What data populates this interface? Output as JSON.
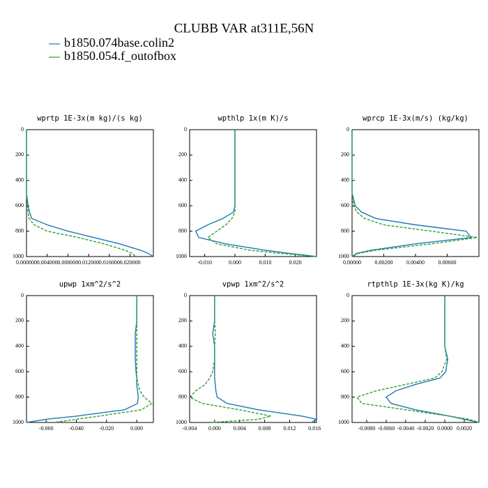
{
  "title": "CLUBB VAR at311E,56N",
  "legend": [
    {
      "name": "b1850.074base.colin2",
      "color": "#1f77b4"
    },
    {
      "name": "b1850.054.f_outofbox",
      "color": "#2ca02c"
    }
  ],
  "chart_data": [
    {
      "type": "line",
      "title": "wprtp  1E-3x(m kg)/(s kg)",
      "y": [
        0,
        100,
        200,
        300,
        400,
        500,
        600,
        650,
        700,
        750,
        800,
        850,
        900,
        950,
        975,
        1000
      ],
      "ylim": [
        0,
        1000
      ],
      "y_inverted": true,
      "yticks": [
        0,
        200,
        400,
        600,
        800,
        1000
      ],
      "xlim": [
        0,
        0.0245
      ],
      "xticks": [
        {
          "value": 0,
          "label": "0.000000"
        },
        {
          "value": 0.004,
          "label": "0.004000"
        },
        {
          "value": 0.008,
          "label": "0.008000"
        },
        {
          "value": 0.012,
          "label": "0.012000"
        },
        {
          "value": 0.016,
          "label": "0.016000"
        },
        {
          "value": 0.02,
          "label": "0.020000"
        }
      ],
      "series": [
        {
          "color": "#1f77b4",
          "dashed": false,
          "values": [
            0,
            0,
            0,
            0,
            0,
            0,
            0.0003,
            0.0006,
            0.001,
            0.004,
            0.008,
            0.013,
            0.018,
            0.022,
            0.0235,
            0.0245
          ]
        },
        {
          "color": "#2ca02c",
          "dashed": true,
          "values": [
            0,
            0,
            0,
            0,
            0,
            0,
            0.0002,
            0.0003,
            0.0005,
            0.0015,
            0.004,
            0.01,
            0.015,
            0.019,
            0.0205,
            0.021
          ]
        }
      ]
    },
    {
      "type": "line",
      "title": "wpthlp  1x(m K)/s",
      "y": [
        0,
        100,
        200,
        300,
        400,
        500,
        600,
        650,
        700,
        750,
        800,
        850,
        900,
        950,
        975,
        1000
      ],
      "ylim": [
        0,
        1000
      ],
      "y_inverted": true,
      "yticks": [
        0,
        200,
        400,
        600,
        800,
        1000
      ],
      "xlim": [
        -0.015,
        0.027
      ],
      "xticks": [
        {
          "value": -0.01,
          "label": "-0.010"
        },
        {
          "value": 0,
          "label": "0.000"
        },
        {
          "value": 0.01,
          "label": "0.010"
        },
        {
          "value": 0.02,
          "label": "0.020"
        }
      ],
      "series": [
        {
          "color": "#1f77b4",
          "dashed": false,
          "values": [
            0,
            0,
            0,
            0,
            0,
            0,
            0,
            -0.0005,
            -0.004,
            -0.009,
            -0.013,
            -0.012,
            -0.003,
            0.01,
            0.018,
            0.027
          ]
        },
        {
          "color": "#2ca02c",
          "dashed": true,
          "values": [
            0,
            0,
            0,
            0,
            0,
            0,
            0,
            0,
            -0.001,
            -0.003,
            -0.006,
            -0.009,
            -0.006,
            0.005,
            0.015,
            0.027
          ]
        }
      ]
    },
    {
      "type": "line",
      "title": "wprcp  1E-3x(m/s) (kg/kg)",
      "y": [
        0,
        100,
        200,
        300,
        400,
        500,
        600,
        650,
        700,
        750,
        800,
        850,
        900,
        950,
        975,
        1000
      ],
      "ylim": [
        0,
        1000
      ],
      "y_inverted": true,
      "yticks": [
        0,
        200,
        400,
        600,
        800,
        1000
      ],
      "xlim": [
        0,
        0.008
      ],
      "xticks": [
        {
          "value": 0,
          "label": "0.00000"
        },
        {
          "value": 0.002,
          "label": "0.00200"
        },
        {
          "value": 0.004,
          "label": "0.00400"
        },
        {
          "value": 0.006,
          "label": "0.00600"
        }
      ],
      "series": [
        {
          "color": "#1f77b4",
          "dashed": false,
          "values": [
            0,
            0,
            0,
            0,
            0,
            0,
            0.0002,
            0.0006,
            0.0015,
            0.004,
            0.0072,
            0.0075,
            0.004,
            0.0012,
            0.0003,
            0
          ]
        },
        {
          "color": "#2ca02c",
          "dashed": true,
          "values": [
            0,
            0,
            0,
            0,
            0,
            0,
            0.0001,
            0.0003,
            0.0008,
            0.002,
            0.005,
            0.0079,
            0.005,
            0.0015,
            0.0004,
            0
          ]
        }
      ]
    },
    {
      "type": "line",
      "title": "upwp  1xm^2/s^2",
      "y": [
        0,
        100,
        200,
        300,
        400,
        500,
        600,
        650,
        700,
        750,
        800,
        850,
        900,
        950,
        975,
        1000
      ],
      "ylim": [
        0,
        1000
      ],
      "y_inverted": true,
      "yticks": [
        0,
        200,
        400,
        600,
        800,
        1000
      ],
      "xlim": [
        -0.073,
        0.011
      ],
      "xticks": [
        {
          "value": -0.06,
          "label": "-0.060"
        },
        {
          "value": -0.04,
          "label": "-0.040"
        },
        {
          "value": -0.02,
          "label": "-0.020"
        },
        {
          "value": 0,
          "label": "0.000"
        }
      ],
      "series": [
        {
          "color": "#1f77b4",
          "dashed": false,
          "values": [
            0,
            0,
            0,
            -0.001,
            -0.001,
            -0.001,
            -0.0005,
            0,
            0,
            0.0005,
            0.001,
            0.0005,
            -0.008,
            -0.04,
            -0.06,
            -0.073
          ]
        },
        {
          "color": "#2ca02c",
          "dashed": true,
          "values": [
            0,
            0,
            0,
            0,
            0,
            0,
            0,
            0,
            0.001,
            0.002,
            0.005,
            0.01,
            0.003,
            -0.025,
            -0.04,
            -0.055
          ]
        }
      ]
    },
    {
      "type": "line",
      "title": "vpwp  1xm^2/s^2",
      "y": [
        0,
        100,
        200,
        300,
        400,
        500,
        600,
        650,
        700,
        750,
        800,
        850,
        900,
        950,
        975,
        1000
      ],
      "ylim": [
        0,
        1000
      ],
      "y_inverted": true,
      "yticks": [
        0,
        200,
        400,
        600,
        800,
        1000
      ],
      "xlim": [
        -0.004,
        0.0163
      ],
      "xticks": [
        {
          "value": -0.004,
          "label": "-0.004"
        },
        {
          "value": 0,
          "label": "0.000"
        },
        {
          "value": 0.004,
          "label": "0.004"
        },
        {
          "value": 0.008,
          "label": "0.008"
        },
        {
          "value": 0.012,
          "label": "0.012"
        },
        {
          "value": 0.016,
          "label": "0.016"
        }
      ],
      "series": [
        {
          "color": "#1f77b4",
          "dashed": false,
          "values": [
            0,
            0,
            0,
            -0.0003,
            0,
            0,
            0,
            0,
            0.0001,
            0.0002,
            0.0004,
            0.002,
            0.007,
            0.014,
            0.0163,
            0.0155
          ]
        },
        {
          "color": "#2ca02c",
          "dashed": true,
          "values": [
            0,
            0,
            0,
            0.0001,
            0,
            0,
            -0.0003,
            -0.0008,
            -0.0015,
            -0.003,
            -0.004,
            -0.002,
            0.004,
            0.009,
            0.007,
            -0.0005
          ]
        }
      ]
    },
    {
      "type": "line",
      "title": "rtpthlp  1E-3x(kg K)/kg",
      "y": [
        0,
        100,
        200,
        300,
        400,
        500,
        600,
        650,
        700,
        750,
        800,
        850,
        900,
        950,
        975,
        1000
      ],
      "ylim": [
        0,
        1000
      ],
      "y_inverted": true,
      "yticks": [
        0,
        200,
        400,
        600,
        800,
        1000
      ],
      "xlim": [
        -0.0095,
        0.0035
      ],
      "xticks": [
        {
          "value": -0.008,
          "label": "-0.0080"
        },
        {
          "value": -0.006,
          "label": "-0.0060"
        },
        {
          "value": -0.004,
          "label": "-0.0040"
        },
        {
          "value": -0.002,
          "label": "-0.0020"
        },
        {
          "value": 0,
          "label": "0.0000"
        },
        {
          "value": 0.002,
          "label": "0.0020"
        }
      ],
      "series": [
        {
          "color": "#1f77b4",
          "dashed": false,
          "values": [
            0,
            0,
            0,
            0,
            0,
            0.0003,
            0.0001,
            -0.0005,
            -0.003,
            -0.005,
            -0.006,
            -0.0055,
            -0.003,
            0.0005,
            0.002,
            0.0035
          ]
        },
        {
          "color": "#2ca02c",
          "dashed": true,
          "values": [
            0,
            0,
            0,
            0,
            0,
            0.0002,
            -0.0003,
            -0.001,
            -0.004,
            -0.007,
            -0.009,
            -0.0085,
            -0.004,
            0.0005,
            0.0025,
            0.0035
          ]
        }
      ]
    }
  ]
}
